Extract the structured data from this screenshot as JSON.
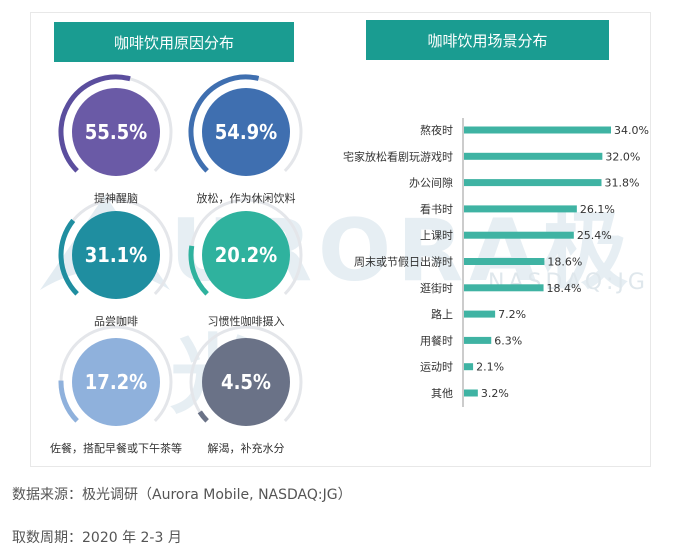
{
  "watermark": {
    "brand": "URORA",
    "brand_cn": "极光",
    "exchange": "NASDAQ:JG"
  },
  "footer": {
    "source": "数据来源：极光调研（Aurora Mobile, NASDAQ:JG）",
    "period": "取数周期：2020 年 2-3 月"
  },
  "chart_data": [
    {
      "type": "donut",
      "title": "咖啡饮用原因分布",
      "items": [
        {
          "label": "提神醒脑",
          "value": 55.5,
          "display": "55.5%",
          "color": "#6a5aa6",
          "arc_color": "#5b4e9e"
        },
        {
          "label": "放松，作为休闲饮料",
          "value": 54.9,
          "display": "54.9%",
          "color": "#3f6fb0",
          "arc_color": "#3f6fb0"
        },
        {
          "label": "品尝咖啡",
          "value": 31.1,
          "display": "31.1%",
          "color": "#1f8ea0",
          "arc_color": "#1f8ea0"
        },
        {
          "label": "习惯性咖啡摄入",
          "value": 20.2,
          "display": "20.2%",
          "color": "#2fb29e",
          "arc_color": "#2fb29e"
        },
        {
          "label": "佐餐，搭配早餐或下午茶等",
          "value": 17.2,
          "display": "17.2%",
          "color": "#8fb1dc",
          "arc_color": "#8fb1dc"
        },
        {
          "label": "解渴，补充水分",
          "value": 4.5,
          "display": "4.5%",
          "color": "#6a7287",
          "arc_color": "#6a7287"
        }
      ]
    },
    {
      "type": "bar",
      "orientation": "horizontal",
      "title": "咖啡饮用场景分布",
      "categories": [
        "熬夜时",
        "宅家放松看剧玩游戏时",
        "办公间隙",
        "看书时",
        "上课时",
        "周末或节假日出游时",
        "逛街时",
        "路上",
        "用餐时",
        "运动时",
        "其他"
      ],
      "values": [
        34.0,
        32.0,
        31.8,
        26.1,
        25.4,
        18.6,
        18.4,
        7.2,
        6.3,
        2.1,
        3.2
      ],
      "value_labels": [
        "34.0%",
        "32.0%",
        "31.8%",
        "26.1%",
        "25.4%",
        "18.6%",
        "18.4%",
        "7.2%",
        "6.3%",
        "2.1%",
        "3.2%"
      ],
      "bar_color": "#3fb3a3",
      "xlim": [
        0,
        34
      ]
    }
  ]
}
